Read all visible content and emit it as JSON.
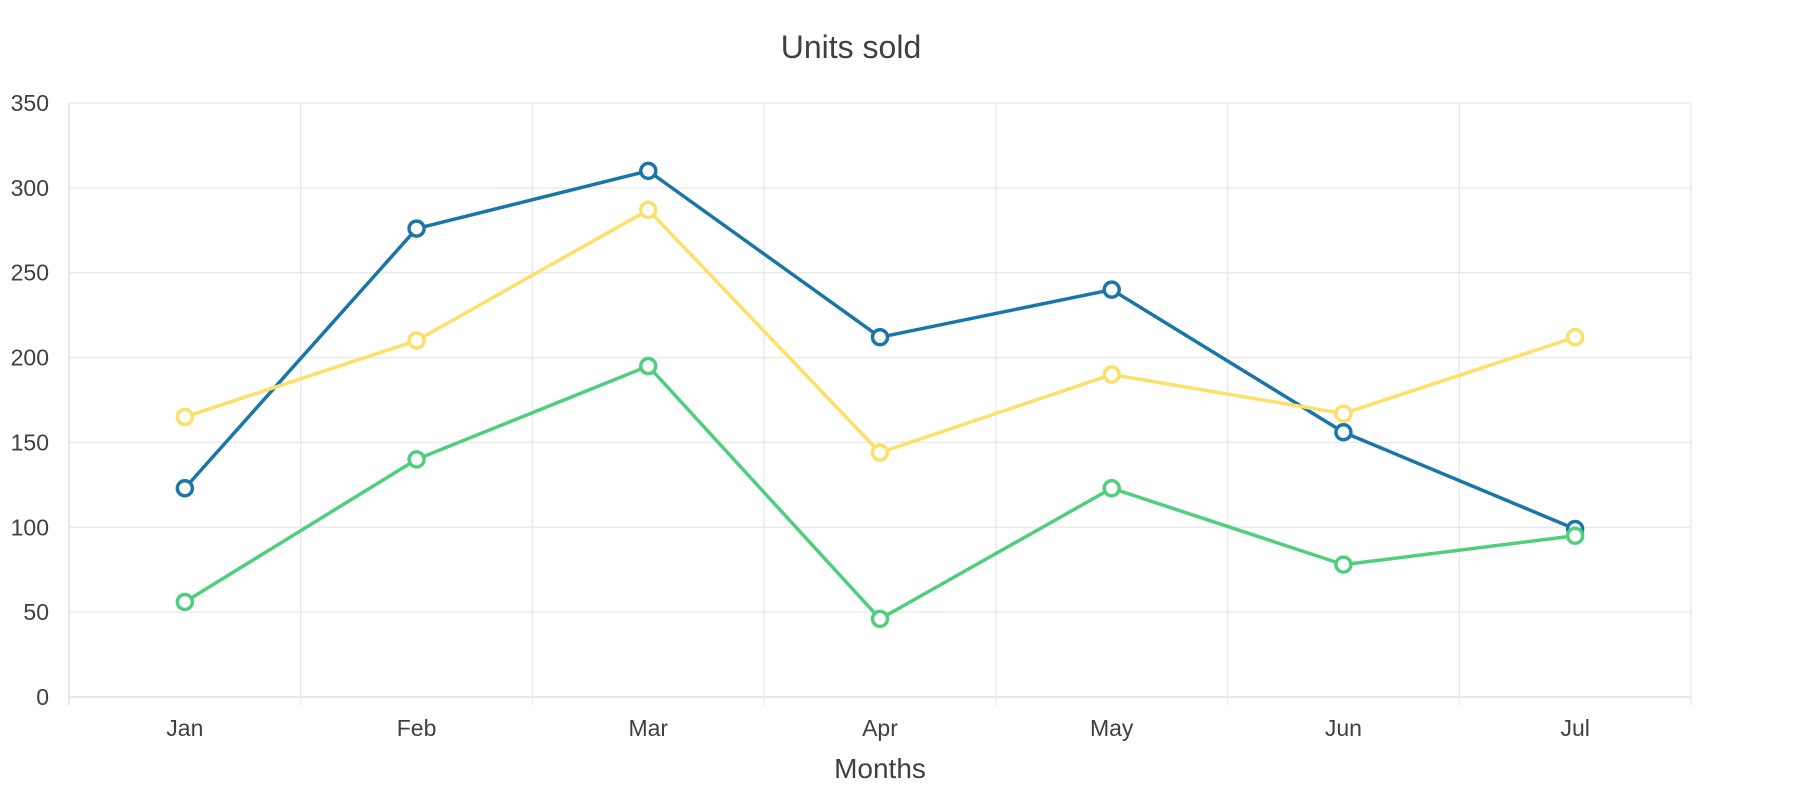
{
  "chart_data": {
    "type": "line",
    "title": "Units sold",
    "xlabel": "Months",
    "ylabel": "",
    "categories": [
      "Jan",
      "Feb",
      "Mar",
      "Apr",
      "May",
      "Jun",
      "Jul"
    ],
    "ylim": [
      0,
      350
    ],
    "yticks": [
      0,
      50,
      100,
      150,
      200,
      250,
      300,
      350
    ],
    "grid": true,
    "legend": "none",
    "series": [
      {
        "color": "#1a76a8",
        "values": [
          123,
          276,
          310,
          212,
          240,
          156,
          99
        ]
      },
      {
        "color": "#fde067",
        "values": [
          165,
          210,
          287,
          144,
          190,
          167,
          212
        ]
      },
      {
        "color": "#4fcf7d",
        "values": [
          56,
          140,
          195,
          46,
          123,
          78,
          95
        ]
      }
    ]
  }
}
